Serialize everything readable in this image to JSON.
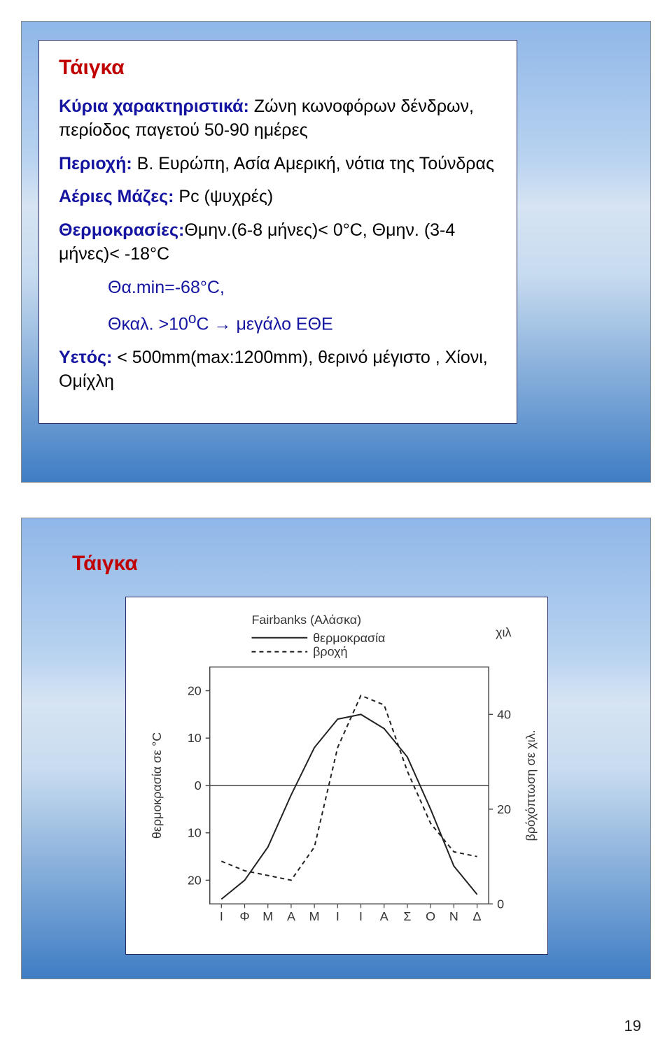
{
  "slide1": {
    "title": "Τάιγκα",
    "l1_label": "Κύρια χαρακτηριστικά:",
    "l1_text": "Ζώνη κωνοφόρων δένδρων, περίοδος παγετού 50-90 ημέρες",
    "l2_label": "Περιοχή:",
    "l2_text": "Β. Ευρώπη, Ασία Αμερική, νότια της Τούνδρας",
    "l3_label": "Αέριες Μάζες:",
    "l3_text": "Pc (ψυχρές)",
    "l4_label": "Θερμοκρασίες:",
    "l4_text": "Θμην.(6-8 μήνες)< 0°C, Θμην. (3-4 μήνες)< -18°C",
    "l5_text": "Θα.min=-68°C,",
    "l6_text_a": "Θκαλ. >10",
    "l6_text_b": "C     → μεγάλο ΕΘΕ",
    "l6_sup": "o",
    "l7_label": "Υετός:",
    "l7_text": "< 500mm(max:1200mm), θερινό μέγιστο , Χίονι, Ομίχλη"
  },
  "slide2": {
    "title": "Τάιγκα",
    "chart": {
      "type": "line",
      "title": "Fairbanks (Αλάσκα)",
      "legend_temp": "θερμοκρασία",
      "legend_rain": "βροχή",
      "y1_label": "θερμοκρασία σε °C",
      "y2_label": "βρόχόπτωση σε χιλ.",
      "y2_unit": "χιλ",
      "months": [
        "Ι",
        "Φ",
        "Μ",
        "Α",
        "Μ",
        "Ι",
        "Ι",
        "Α",
        "Σ",
        "Ο",
        "Ν",
        "Δ"
      ],
      "y1_ticks": [
        20,
        10,
        0,
        10,
        20
      ],
      "y1_tick_vals": [
        20,
        10,
        0,
        -10,
        -20
      ],
      "y2_ticks": [
        40,
        20,
        0
      ],
      "temp_values": [
        -24,
        -20,
        -13,
        -2,
        8,
        14,
        15,
        12,
        6,
        -5,
        -17,
        -23
      ],
      "rain_values": [
        9,
        7,
        6,
        5,
        12,
        33,
        44,
        42,
        28,
        17,
        11,
        10
      ],
      "colors": {
        "axis": "#444444",
        "line": "#222222",
        "bg": "#ffffff",
        "border": "#cccccc"
      },
      "line_width": 2,
      "dash": "6,5"
    }
  },
  "page_number": "19"
}
